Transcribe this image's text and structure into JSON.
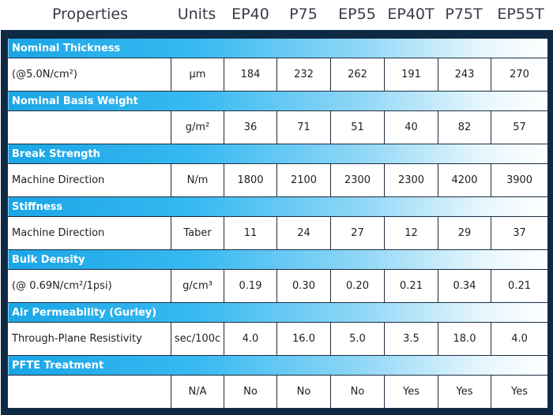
{
  "header": {
    "properties": "Properties",
    "units": "Units",
    "columns": [
      "EP40",
      "P75",
      "EP55",
      "EP40T",
      "P75T",
      "EP55T"
    ]
  },
  "sections": [
    {
      "title": "Nominal Thickness",
      "row": {
        "label": "(@5.0N/cm²)",
        "unit": "µm",
        "values": [
          "184",
          "232",
          "262",
          "191",
          "243",
          "270"
        ]
      }
    },
    {
      "title": "Nominal Basis Weight",
      "row": {
        "label": "",
        "unit": "g/m²",
        "values": [
          "36",
          "71",
          "51",
          "40",
          "82",
          "57"
        ]
      }
    },
    {
      "title": "Break Strength",
      "row": {
        "label": "Machine Direction",
        "unit": "N/m",
        "values": [
          "1800",
          "2100",
          "2300",
          "2300",
          "4200",
          "3900"
        ]
      }
    },
    {
      "title": "Stiffness",
      "row": {
        "label": "Machine Direction",
        "unit": "Taber",
        "values": [
          "11",
          "24",
          "27",
          "12",
          "29",
          "37"
        ]
      }
    },
    {
      "title": "Bulk Density",
      "row": {
        "label": "(@ 0.69N/cm²/1psi)",
        "unit": "g/cm³",
        "values": [
          "0.19",
          "0.30",
          "0.20",
          "0.21",
          "0.34",
          "0.21"
        ]
      }
    },
    {
      "title": "Air Permeability (Gurley)",
      "row": {
        "label": "Through-Plane Resistivity",
        "unit": "sec/100c",
        "values": [
          "4.0",
          "16.0",
          "5.0",
          "3.5",
          "18.0",
          "4.0"
        ]
      }
    },
    {
      "title": "PFTE Treatment",
      "row": {
        "label": "",
        "unit": "N/A",
        "values": [
          "No",
          "No",
          "No",
          "Yes",
          "Yes",
          "Yes"
        ]
      }
    }
  ]
}
